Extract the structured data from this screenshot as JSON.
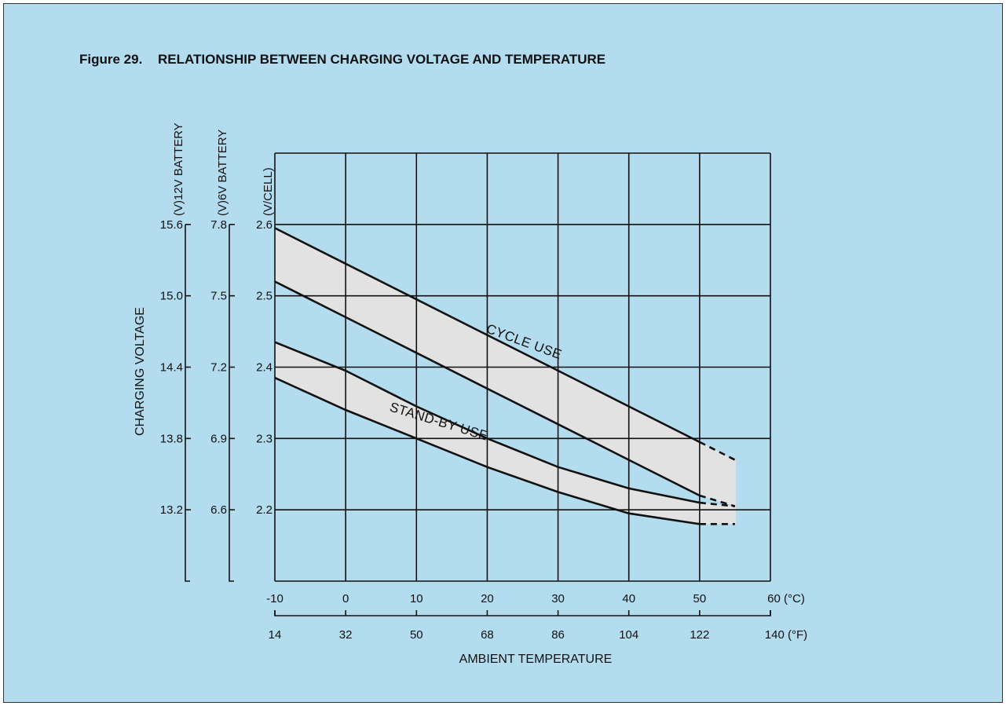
{
  "figure_label": "Figure 29.",
  "chart_data": {
    "type": "area",
    "title": "RELATIONSHIP BETWEEN CHARGING VOLTAGE AND TEMPERATURE",
    "xlabel": "AMBIENT TEMPERATURE",
    "ylabel": "CHARGING VOLTAGE",
    "x_unit_c": "60 (°C)",
    "x_unit_f": "140 (°F)",
    "xlim": [
      -10,
      60
    ],
    "ylim": [
      2.1,
      2.7
    ],
    "x_ticks_c": [
      "-10",
      "0",
      "10",
      "20",
      "30",
      "40",
      "50"
    ],
    "x_ticks_f": [
      "14",
      "32",
      "50",
      "68",
      "86",
      "104",
      "122"
    ],
    "x_tick_values": [
      -10,
      0,
      10,
      20,
      30,
      40,
      50,
      60
    ],
    "y_axes": [
      {
        "label": "(V/CELL)",
        "ticks": [
          "2.2",
          "2.3",
          "2.4",
          "2.5",
          "2.6"
        ]
      },
      {
        "label": "(V)6V BATTERY",
        "ticks": [
          "6.6",
          "6.9",
          "7.2",
          "7.5",
          "7.8"
        ]
      },
      {
        "label": "(V)12V BATTERY",
        "ticks": [
          "13.2",
          "13.8",
          "14.4",
          "15.0",
          "15.6"
        ]
      }
    ],
    "y_tick_values": [
      2.2,
      2.3,
      2.4,
      2.5,
      2.6
    ],
    "grid": true,
    "series": [
      {
        "name": "CYCLE USE",
        "upper": {
          "x": [
            -10,
            0,
            10,
            20,
            30,
            40,
            50,
            55
          ],
          "y": [
            2.595,
            2.545,
            2.495,
            2.445,
            2.395,
            2.345,
            2.295,
            2.27
          ]
        },
        "lower": {
          "x": [
            -10,
            0,
            10,
            20,
            30,
            40,
            50,
            55
          ],
          "y": [
            2.52,
            2.47,
            2.42,
            2.37,
            2.32,
            2.27,
            2.22,
            2.205
          ]
        },
        "dashed_from_x": 50
      },
      {
        "name": "STAND-BY USE",
        "upper": {
          "x": [
            -10,
            0,
            10,
            20,
            30,
            40,
            50,
            55
          ],
          "y": [
            2.435,
            2.395,
            2.345,
            2.3,
            2.26,
            2.23,
            2.21,
            2.205
          ]
        },
        "lower": {
          "x": [
            -10,
            0,
            10,
            20,
            30,
            40,
            50,
            55
          ],
          "y": [
            2.385,
            2.34,
            2.3,
            2.26,
            2.225,
            2.195,
            2.18,
            2.18
          ]
        },
        "dashed_from_x": 50
      }
    ]
  }
}
